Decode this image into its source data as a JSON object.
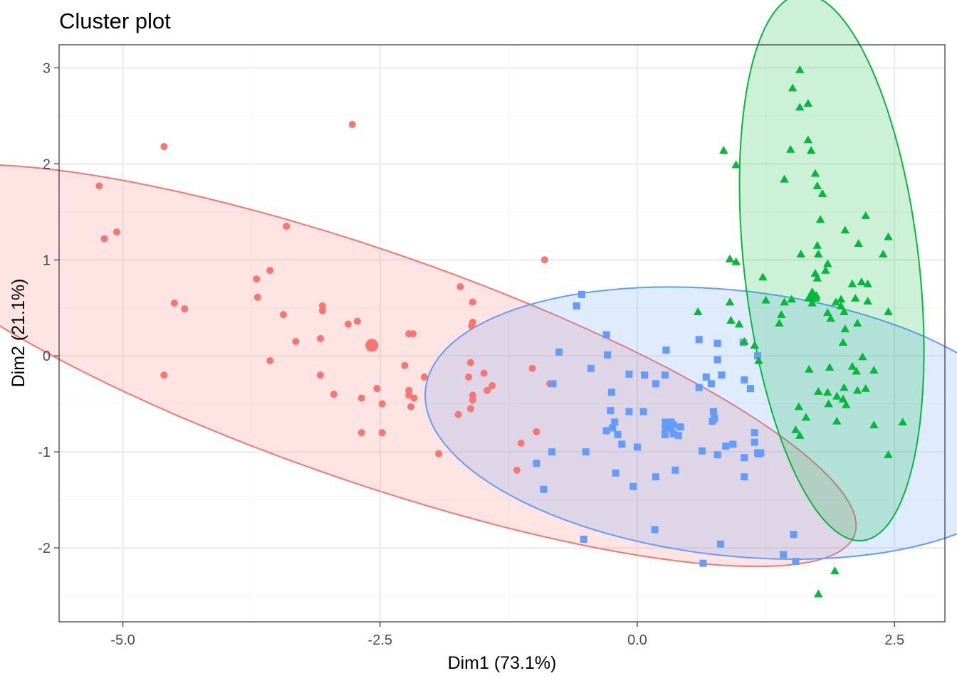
{
  "chart_data": {
    "type": "scatter",
    "title": "Cluster plot",
    "xlabel": "Dim1 (73.1%)",
    "ylabel": "Dim2 (21.1%)",
    "xlim": [
      -5.62,
      2.99
    ],
    "ylim": [
      -2.77,
      3.24
    ],
    "x_ticks": [
      -5.0,
      -2.5,
      0.0,
      2.5
    ],
    "x_tick_labels": [
      "-5.0",
      "-2.5",
      "0.0",
      "2.5"
    ],
    "y_ticks": [
      -2,
      -1,
      0,
      1,
      2,
      3
    ],
    "y_tick_labels": [
      "-2",
      "-1",
      "0",
      "1",
      "2",
      "3"
    ],
    "grid": true,
    "legend": "none",
    "colors": {
      "cluster1": "#F8766D",
      "cluster2": "#619CFF",
      "cluster3": "#00BA38",
      "panel_border": "#333333",
      "grid_major": "#ebebeb",
      "grid_minor": "#f5f5f5"
    },
    "series": [
      {
        "color": "#F8766D",
        "marker": "circle",
        "centroid": [
          -2.58,
          0.11
        ],
        "ellipse": {
          "center": [
            -2.63,
            -0.1
          ],
          "rx": 5.06,
          "ry": 1.19,
          "angle_deg": -20.5
        },
        "points": [
          [
            -5.23,
            1.77
          ],
          [
            -5.06,
            1.29
          ],
          [
            -5.18,
            1.22
          ],
          [
            -4.6,
            2.18
          ],
          [
            -4.6,
            -0.2
          ],
          [
            -4.5,
            0.55
          ],
          [
            -4.4,
            0.49
          ],
          [
            -3.7,
            0.8
          ],
          [
            -3.69,
            0.61
          ],
          [
            -3.57,
            0.89
          ],
          [
            -3.57,
            -0.05
          ],
          [
            -3.44,
            0.43
          ],
          [
            -3.41,
            1.35
          ],
          [
            -3.32,
            0.15
          ],
          [
            -3.06,
            0.52
          ],
          [
            -3.06,
            0.47
          ],
          [
            -3.08,
            0.18
          ],
          [
            -3.08,
            -0.2
          ],
          [
            -2.95,
            -0.4
          ],
          [
            -2.81,
            0.33
          ],
          [
            -2.77,
            2.41
          ],
          [
            -2.72,
            0.36
          ],
          [
            -2.68,
            -0.44
          ],
          [
            -2.68,
            -0.8
          ],
          [
            -2.53,
            -0.34
          ],
          [
            -2.48,
            -0.5
          ],
          [
            -2.48,
            -0.8
          ],
          [
            -2.26,
            -0.1
          ],
          [
            -2.22,
            0.23
          ],
          [
            -2.18,
            0.23
          ],
          [
            -2.22,
            -0.36
          ],
          [
            -2.22,
            -0.41
          ],
          [
            -2.17,
            -0.44
          ],
          [
            -2.2,
            -0.53
          ],
          [
            -2.07,
            -0.22
          ],
          [
            -1.93,
            -1.02
          ],
          [
            -1.72,
            0.72
          ],
          [
            -1.74,
            -0.61
          ],
          [
            -1.6,
            0.56
          ],
          [
            -1.6,
            0.35
          ],
          [
            -1.61,
            0.31
          ],
          [
            -1.62,
            -0.07
          ],
          [
            -1.64,
            -0.22
          ],
          [
            -1.6,
            -0.41
          ],
          [
            -1.6,
            -0.46
          ],
          [
            -1.62,
            -0.55
          ],
          [
            -1.49,
            -0.18
          ],
          [
            -1.46,
            -0.36
          ],
          [
            -1.41,
            -0.31
          ],
          [
            -1.13,
            -0.91
          ],
          [
            -1.17,
            -1.19
          ],
          [
            -1.02,
            -0.13
          ],
          [
            -0.98,
            -0.79
          ],
          [
            -0.9,
            1.0
          ],
          [
            -0.85,
            -0.29
          ]
        ]
      },
      {
        "color": "#619CFF",
        "marker": "square",
        "centroid": [
          0.3,
          -0.72
        ],
        "ellipse": {
          "center": [
            0.92,
            -0.7
          ],
          "rx": 3.0,
          "ry": 1.38,
          "angle_deg": -7.0
        },
        "points": [
          [
            -0.91,
            -1.39
          ],
          [
            -0.98,
            -1.12
          ],
          [
            -0.82,
            -0.29
          ],
          [
            -0.76,
            0.04
          ],
          [
            -0.59,
            0.52
          ],
          [
            -0.54,
            0.64
          ],
          [
            -0.45,
            -0.13
          ],
          [
            -0.83,
            -1.0
          ],
          [
            -0.52,
            -1.91
          ],
          [
            -0.5,
            -1.0
          ],
          [
            -0.3,
            0.22
          ],
          [
            -0.29,
            0.01
          ],
          [
            -0.25,
            -0.38
          ],
          [
            -0.26,
            -0.57
          ],
          [
            -0.24,
            -0.75
          ],
          [
            -0.22,
            -0.69
          ],
          [
            -0.19,
            -0.82
          ],
          [
            -0.3,
            -0.78
          ],
          [
            -0.21,
            -1.22
          ],
          [
            -0.15,
            -0.92
          ],
          [
            -0.08,
            -0.58
          ],
          [
            -0.08,
            -0.19
          ],
          [
            -0.04,
            -1.36
          ],
          [
            0.06,
            -0.58
          ],
          [
            0.07,
            -0.2
          ],
          [
            0.18,
            -0.29
          ],
          [
            0.0,
            -0.95
          ],
          [
            0.18,
            -1.26
          ],
          [
            0.27,
            -0.2
          ],
          [
            0.27,
            -0.82
          ],
          [
            0.29,
            -0.73
          ],
          [
            0.35,
            -0.72
          ],
          [
            0.28,
            0.06
          ],
          [
            0.35,
            -0.81
          ],
          [
            0.42,
            -0.74
          ],
          [
            0.4,
            -0.83
          ],
          [
            0.17,
            -1.81
          ],
          [
            0.37,
            -1.19
          ],
          [
            0.6,
            0.17
          ],
          [
            0.6,
            -0.33
          ],
          [
            0.63,
            -0.99
          ],
          [
            0.64,
            -2.16
          ],
          [
            0.67,
            -0.22
          ],
          [
            0.72,
            -0.29
          ],
          [
            0.74,
            -0.58
          ],
          [
            0.75,
            -0.65
          ],
          [
            0.73,
            -0.68
          ],
          [
            0.78,
            0.13
          ],
          [
            0.78,
            -0.04
          ],
          [
            0.82,
            -0.2
          ],
          [
            0.78,
            -1.03
          ],
          [
            0.81,
            -1.96
          ],
          [
            0.86,
            -0.94
          ],
          [
            0.93,
            -0.92
          ],
          [
            1.03,
            0.14
          ],
          [
            1.04,
            -0.25
          ],
          [
            1.04,
            -1.06
          ],
          [
            1.04,
            -1.26
          ],
          [
            1.1,
            -0.34
          ],
          [
            1.14,
            -0.8
          ],
          [
            1.14,
            -0.9
          ],
          [
            1.17,
            -1.01
          ],
          [
            1.2,
            -1.01
          ],
          [
            1.18,
            -1.02
          ],
          [
            1.17,
            0.0
          ],
          [
            1.42,
            -2.07
          ],
          [
            1.52,
            -1.86
          ],
          [
            1.54,
            -2.14
          ]
        ]
      },
      {
        "color": "#00BA38",
        "marker": "triangle",
        "centroid": [
          1.7,
          0.63
        ],
        "ellipse": {
          "center": [
            1.89,
            0.92
          ],
          "rx": 2.86,
          "ry": 0.85,
          "angle_deg": -84.0
        },
        "points": [
          [
            1.58,
            2.98
          ],
          [
            1.51,
            2.79
          ],
          [
            1.58,
            2.59
          ],
          [
            1.66,
            2.63
          ],
          [
            1.66,
            2.25
          ],
          [
            1.49,
            2.15
          ],
          [
            1.69,
            2.14
          ],
          [
            1.43,
            1.84
          ],
          [
            1.73,
            1.9
          ],
          [
            1.75,
            1.77
          ],
          [
            0.84,
            2.14
          ],
          [
            0.96,
            1.99
          ],
          [
            1.8,
            1.69
          ],
          [
            1.78,
            1.42
          ],
          [
            2.02,
            1.31
          ],
          [
            2.22,
            1.46
          ],
          [
            2.15,
            1.17
          ],
          [
            2.39,
            1.06
          ],
          [
            2.44,
            1.24
          ],
          [
            1.59,
            1.06
          ],
          [
            1.75,
            1.15
          ],
          [
            1.76,
            1.06
          ],
          [
            1.73,
            0.86
          ],
          [
            1.75,
            0.81
          ],
          [
            1.85,
            0.96
          ],
          [
            1.83,
            0.89
          ],
          [
            0.9,
            1.01
          ],
          [
            0.96,
            0.98
          ],
          [
            1.22,
            0.82
          ],
          [
            1.98,
            0.59
          ],
          [
            2.09,
            0.75
          ],
          [
            2.18,
            0.77
          ],
          [
            2.24,
            0.75
          ],
          [
            1.93,
            0.56
          ],
          [
            2.01,
            0.46
          ],
          [
            2.12,
            0.6
          ],
          [
            2.24,
            0.57
          ],
          [
            1.25,
            0.58
          ],
          [
            1.5,
            0.59
          ],
          [
            1.7,
            0.55
          ],
          [
            1.74,
            0.63
          ],
          [
            1.85,
            0.45
          ],
          [
            1.88,
            0.39
          ],
          [
            1.98,
            0.52
          ],
          [
            2.02,
            0.28
          ],
          [
            2.14,
            0.34
          ],
          [
            2.44,
            0.46
          ],
          [
            1.43,
            0.56
          ],
          [
            0.9,
            0.56
          ],
          [
            0.91,
            0.37
          ],
          [
            0.99,
            0.33
          ],
          [
            1.04,
            0.15
          ],
          [
            1.14,
            0.11
          ],
          [
            1.18,
            -0.05
          ],
          [
            1.4,
            0.43
          ],
          [
            1.38,
            0.34
          ],
          [
            0.59,
            0.46
          ],
          [
            2.0,
            0.14
          ],
          [
            2.09,
            -0.11
          ],
          [
            2.13,
            -0.16
          ],
          [
            1.67,
            -0.14
          ],
          [
            1.87,
            -0.12
          ],
          [
            2.3,
            -0.15
          ],
          [
            2.19,
            -0.01
          ],
          [
            1.85,
            -0.38
          ],
          [
            1.94,
            -0.42
          ],
          [
            2.01,
            -0.33
          ],
          [
            2.14,
            -0.36
          ],
          [
            2.03,
            -0.51
          ],
          [
            2.22,
            -0.34
          ],
          [
            1.76,
            -0.37
          ],
          [
            1.57,
            -0.53
          ],
          [
            1.64,
            -0.64
          ],
          [
            1.86,
            -0.5
          ],
          [
            1.94,
            -0.68
          ],
          [
            2.0,
            -0.45
          ],
          [
            2.3,
            -0.72
          ],
          [
            1.54,
            -0.77
          ],
          [
            1.58,
            -0.83
          ],
          [
            2.44,
            -1.03
          ],
          [
            2.58,
            -0.69
          ],
          [
            1.76,
            -2.48
          ],
          [
            1.92,
            -2.24
          ]
        ]
      }
    ]
  }
}
